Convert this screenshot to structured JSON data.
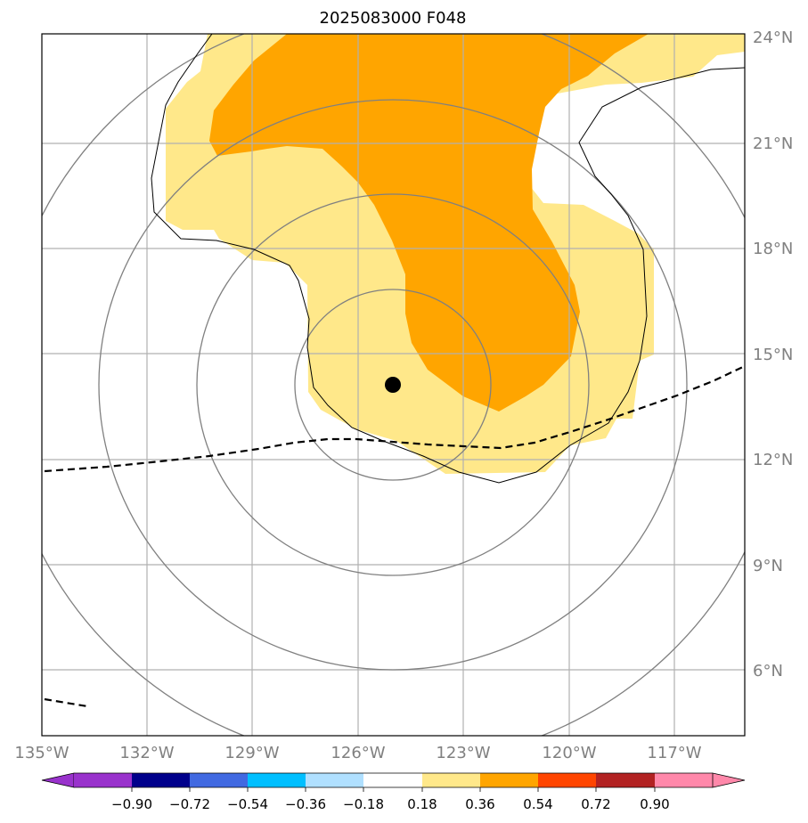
{
  "title": "2025083000 F048",
  "lat_labels": [
    "24°N",
    "21°N",
    "18°N",
    "15°N",
    "12°N",
    "9°N",
    "6°N"
  ],
  "lon_labels": [
    "135°W",
    "132°W",
    "129°W",
    "126°W",
    "123°W",
    "120°W",
    "117°W"
  ],
  "storm_center": {
    "lon": "125.0°W",
    "lat": "14.1°N"
  },
  "colorbar": {
    "labels": [
      "−0.90",
      "−0.72",
      "−0.54",
      "−0.36",
      "−0.18",
      "0.18",
      "0.36",
      "0.54",
      "0.72",
      "0.90"
    ],
    "colors": [
      "#9932cc",
      "#00008b",
      "#4169e1",
      "#00bfff",
      "#b0e0ff",
      "#ffffff",
      "#ffe88a",
      "#ffa500",
      "#ff4500",
      "#b22222",
      "#ff88aa"
    ]
  },
  "colors": {
    "light_fill": "#ffe88a",
    "dark_fill": "#ffa500",
    "grid": "#b0b0b0",
    "range_rings": "#808080",
    "track": "#000000"
  }
}
